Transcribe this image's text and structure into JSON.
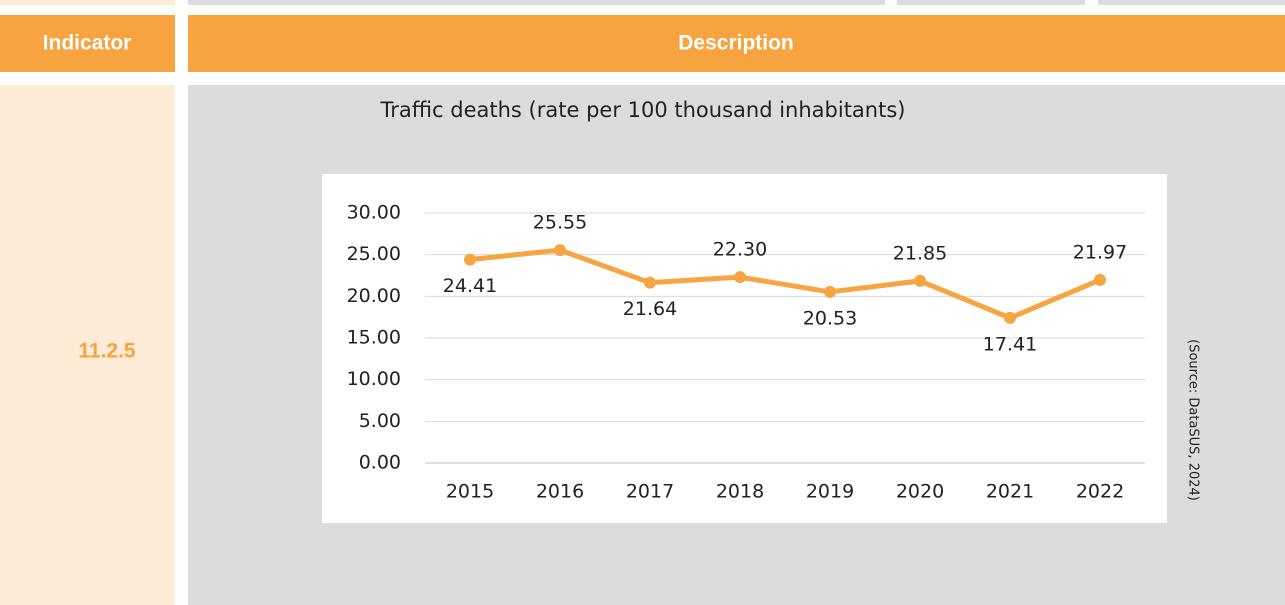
{
  "header": {
    "indicator": "Indicator",
    "description": "Description"
  },
  "row": {
    "indicator": "11.2.5",
    "source": "(Source: DataSUS, 2024)"
  },
  "chart_data": {
    "type": "line",
    "title": "Traffic deaths (rate per 100 thousand inhabitants)",
    "categories": [
      "2015",
      "2016",
      "2017",
      "2018",
      "2019",
      "2020",
      "2021",
      "2022"
    ],
    "series": [
      {
        "color": "#f7a443",
        "values": [
          24.41,
          25.55,
          21.64,
          22.3,
          20.53,
          21.85,
          17.41,
          21.97
        ],
        "value_labels": [
          "24.41",
          "25.55",
          "21.64",
          "22.30",
          "20.53",
          "21.85",
          "17.41",
          "21.97"
        ]
      }
    ],
    "ylim": [
      0,
      30
    ],
    "yticks": [
      {
        "value": 0,
        "label": "0.00"
      },
      {
        "value": 5,
        "label": "5.00"
      },
      {
        "value": 10,
        "label": "10.00"
      },
      {
        "value": 15,
        "label": "15.00"
      },
      {
        "value": 20,
        "label": "20.00"
      },
      {
        "value": 25,
        "label": "25.00"
      },
      {
        "value": 30,
        "label": "30.00"
      }
    ],
    "grid": true
  }
}
